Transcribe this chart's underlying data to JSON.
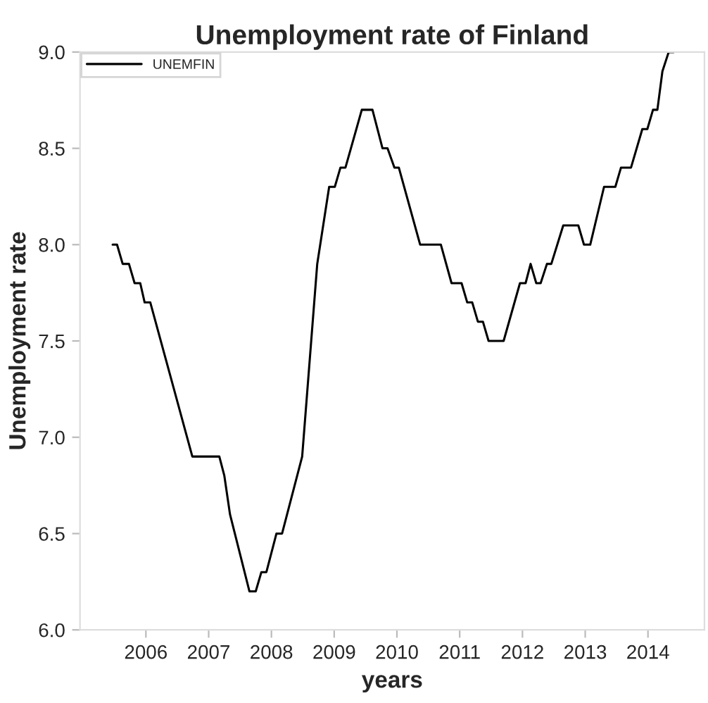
{
  "chart_data": {
    "type": "line",
    "title": "Unemployment rate of Finland",
    "xlabel": "years",
    "ylabel": "Unemployment rate",
    "x": [
      2005.47,
      2005.54,
      2005.63,
      2005.73,
      2005.82,
      2005.91,
      2005.98,
      2006.07,
      2006.74,
      2007.17,
      2007.25,
      2007.34,
      2007.65,
      2007.75,
      2007.84,
      2007.92,
      2008.08,
      2008.17,
      2008.49,
      2008.73,
      2008.92,
      2009.01,
      2009.1,
      2009.18,
      2009.44,
      2009.61,
      2009.77,
      2009.85,
      2009.96,
      2010.03,
      2010.37,
      2010.7,
      2010.87,
      2011.03,
      2011.12,
      2011.2,
      2011.29,
      2011.37,
      2011.46,
      2011.7,
      2011.96,
      2012.05,
      2012.13,
      2012.22,
      2012.29,
      2012.39,
      2012.46,
      2012.65,
      2012.89,
      2012.98,
      2013.08,
      2013.3,
      2013.48,
      2013.57,
      2013.73,
      2013.91,
      2013.99,
      2014.08,
      2014.15,
      2014.23,
      2014.33,
      2014.41
    ],
    "series": [
      {
        "name": "UNEMFIN",
        "color": "#000000",
        "values": [
          8.0,
          8.0,
          7.9,
          7.9,
          7.8,
          7.8,
          7.7,
          7.7,
          6.9,
          6.9,
          6.8,
          6.6,
          6.2,
          6.2,
          6.3,
          6.3,
          6.5,
          6.5,
          6.9,
          7.9,
          8.3,
          8.3,
          8.4,
          8.4,
          8.7,
          8.7,
          8.5,
          8.5,
          8.4,
          8.4,
          8.0,
          8.0,
          7.8,
          7.8,
          7.7,
          7.7,
          7.6,
          7.6,
          7.5,
          7.5,
          7.8,
          7.8,
          7.9,
          7.8,
          7.8,
          7.9,
          7.9,
          8.1,
          8.1,
          8.0,
          8.0,
          8.3,
          8.3,
          8.4,
          8.4,
          8.6,
          8.6,
          8.7,
          8.7,
          8.9,
          9.0,
          9.0
        ]
      }
    ],
    "xlim": [
      2004.95,
      2014.9
    ],
    "xticks": [
      2006,
      2007,
      2008,
      2009,
      2010,
      2011,
      2012,
      2013,
      2014
    ],
    "ylim": [
      6.0,
      9.0
    ],
    "yticks": [
      {
        "value": 6,
        "label": "6.0"
      },
      {
        "value": 6.5,
        "label": "6.5"
      },
      {
        "value": 7,
        "label": "7.0"
      },
      {
        "value": 7.5,
        "label": "7.5"
      },
      {
        "value": 8,
        "label": "8.0"
      },
      {
        "value": 8.5,
        "label": "8.5"
      },
      {
        "value": 9,
        "label": "9.0"
      }
    ],
    "legend": "top left",
    "grid": false,
    "line_style": "solid",
    "marker": "none"
  }
}
